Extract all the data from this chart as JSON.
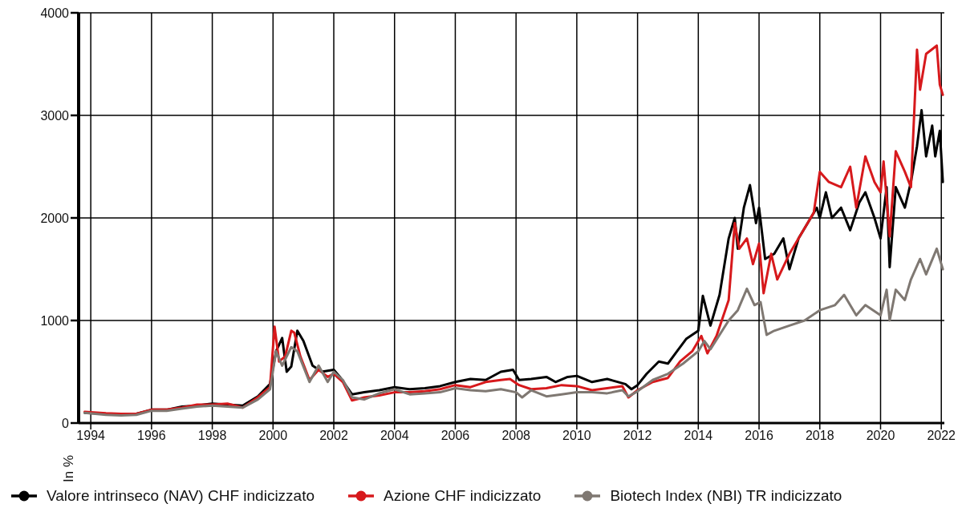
{
  "chart_data": {
    "type": "line",
    "ylabel": "In %",
    "xlim": [
      1993.6,
      2022.1
    ],
    "xticks": [
      1994,
      1996,
      1998,
      2000,
      2002,
      2004,
      2006,
      2008,
      2010,
      2012,
      2014,
      2016,
      2018,
      2020,
      2022
    ],
    "ylim": [
      0,
      4000
    ],
    "yticks": [
      0,
      1000,
      2000,
      3000,
      4000
    ],
    "grid": true,
    "legend": "bottom",
    "marker": "none",
    "line_style": "solid",
    "series": [
      {
        "name": "Valore intrinseco (NAV) CHF indicizzato",
        "color": "#000000",
        "x": [
          1993.8,
          1994.5,
          1995,
          1995.5,
          1996,
          1996.5,
          1997,
          1997.5,
          1998,
          1998.5,
          1999,
          1999.5,
          1999.9,
          2000.1,
          2000.3,
          2000.45,
          2000.6,
          2000.8,
          2001,
          2001.3,
          2001.6,
          2002,
          2002.2,
          2002.6,
          2003,
          2003.5,
          2004,
          2004.5,
          2005,
          2005.5,
          2006,
          2006.5,
          2007,
          2007.5,
          2007.9,
          2008.1,
          2008.5,
          2009,
          2009.3,
          2009.7,
          2010,
          2010.5,
          2011,
          2011.6,
          2011.8,
          2012,
          2012.3,
          2012.7,
          2013,
          2013.3,
          2013.6,
          2014,
          2014.15,
          2014.4,
          2014.7,
          2015,
          2015.2,
          2015.3,
          2015.5,
          2015.7,
          2015.9,
          2016,
          2016.2,
          2016.5,
          2016.8,
          2017,
          2017.3,
          2017.6,
          2017.9,
          2018,
          2018.2,
          2018.4,
          2018.7,
          2019,
          2019.3,
          2019.5,
          2019.8,
          2020,
          2020.2,
          2020.3,
          2020.5,
          2020.8,
          2021,
          2021.2,
          2021.35,
          2021.5,
          2021.7,
          2021.8,
          2021.95,
          2022.05
        ],
        "values": [
          100,
          90,
          85,
          90,
          130,
          130,
          160,
          170,
          190,
          180,
          170,
          260,
          380,
          700,
          830,
          500,
          550,
          900,
          800,
          560,
          500,
          520,
          450,
          280,
          300,
          320,
          350,
          330,
          340,
          360,
          400,
          430,
          420,
          500,
          520,
          420,
          430,
          450,
          400,
          450,
          460,
          400,
          430,
          380,
          330,
          370,
          480,
          600,
          580,
          700,
          820,
          900,
          1240,
          950,
          1250,
          1800,
          2000,
          1700,
          2100,
          2320,
          1950,
          2100,
          1600,
          1650,
          1800,
          1500,
          1800,
          1950,
          2100,
          2000,
          2250,
          2000,
          2100,
          1880,
          2150,
          2250,
          2000,
          1800,
          2300,
          1520,
          2300,
          2100,
          2350,
          2700,
          3050,
          2600,
          2900,
          2600,
          2850,
          2350
        ]
      },
      {
        "name": "Azione CHF indicizzato",
        "color": "#d7191c",
        "x": [
          1993.8,
          1994.5,
          1995,
          1995.5,
          1996,
          1996.5,
          1997,
          1997.5,
          1998,
          1998.5,
          1999,
          1999.5,
          1999.9,
          2000.05,
          2000.2,
          2000.4,
          2000.6,
          2000.7,
          2000.9,
          2001.2,
          2001.5,
          2001.8,
          2002,
          2002.3,
          2002.6,
          2003,
          2003.5,
          2004,
          2004.5,
          2005,
          2005.5,
          2006,
          2006.5,
          2007,
          2007.5,
          2007.8,
          2008.1,
          2008.5,
          2009,
          2009.5,
          2010,
          2010.5,
          2011,
          2011.5,
          2011.7,
          2012,
          2012.5,
          2013,
          2013.4,
          2013.8,
          2014.1,
          2014.3,
          2014.6,
          2015,
          2015.2,
          2015.35,
          2015.6,
          2015.8,
          2016,
          2016.15,
          2016.4,
          2016.6,
          2017,
          2017.5,
          2017.8,
          2018,
          2018.3,
          2018.7,
          2019,
          2019.2,
          2019.5,
          2019.8,
          2020,
          2020.1,
          2020.3,
          2020.5,
          2020.8,
          2021,
          2021.2,
          2021.3,
          2021.5,
          2021.85,
          2021.95,
          2022.05
        ],
        "values": [
          110,
          95,
          90,
          90,
          130,
          130,
          150,
          180,
          180,
          190,
          150,
          250,
          350,
          940,
          600,
          650,
          900,
          880,
          650,
          420,
          520,
          450,
          480,
          400,
          220,
          250,
          270,
          300,
          300,
          310,
          330,
          370,
          350,
          400,
          420,
          430,
          370,
          330,
          340,
          370,
          360,
          320,
          340,
          360,
          250,
          320,
          400,
          440,
          600,
          700,
          850,
          680,
          850,
          1200,
          1950,
          1700,
          1800,
          1550,
          1750,
          1265,
          1650,
          1400,
          1650,
          1900,
          2050,
          2450,
          2350,
          2300,
          2500,
          2100,
          2600,
          2350,
          2250,
          2550,
          1820,
          2650,
          2450,
          2300,
          3640,
          3250,
          3600,
          3680,
          3300,
          3200
        ]
      },
      {
        "name": "Biotech Index (NBI) TR indicizzato",
        "color": "#7f7872",
        "x": [
          1993.8,
          1994.5,
          1995,
          1995.5,
          1996,
          1996.5,
          1997,
          1997.5,
          1998,
          1998.5,
          1999,
          1999.5,
          1999.9,
          2000.1,
          2000.3,
          2000.6,
          2000.8,
          2001.2,
          2001.5,
          2001.8,
          2002,
          2002.3,
          2002.6,
          2003,
          2003.5,
          2004,
          2004.5,
          2005,
          2005.5,
          2006,
          2006.5,
          2007,
          2007.5,
          2008,
          2008.2,
          2008.5,
          2009,
          2009.5,
          2010,
          2010.5,
          2011,
          2011.5,
          2011.7,
          2012,
          2012.5,
          2013,
          2013.5,
          2014,
          2014.2,
          2014.4,
          2015,
          2015.3,
          2015.6,
          2015.85,
          2016.05,
          2016.25,
          2016.5,
          2017,
          2017.5,
          2018,
          2018.5,
          2018.8,
          2019.2,
          2019.5,
          2020,
          2020.2,
          2020.3,
          2020.5,
          2020.8,
          2021,
          2021.3,
          2021.5,
          2021.85,
          2022,
          2022.05
        ],
        "values": [
          100,
          80,
          75,
          80,
          120,
          120,
          140,
          160,
          170,
          160,
          150,
          230,
          330,
          700,
          560,
          740,
          700,
          400,
          560,
          400,
          500,
          420,
          250,
          230,
          290,
          330,
          280,
          290,
          300,
          340,
          320,
          310,
          330,
          300,
          250,
          320,
          260,
          280,
          300,
          300,
          290,
          320,
          260,
          310,
          420,
          480,
          580,
          700,
          800,
          720,
          1000,
          1100,
          1310,
          1150,
          1180,
          860,
          900,
          950,
          1000,
          1100,
          1150,
          1250,
          1050,
          1150,
          1050,
          1300,
          1000,
          1300,
          1200,
          1400,
          1600,
          1450,
          1700,
          1550,
          1500
        ]
      }
    ]
  }
}
